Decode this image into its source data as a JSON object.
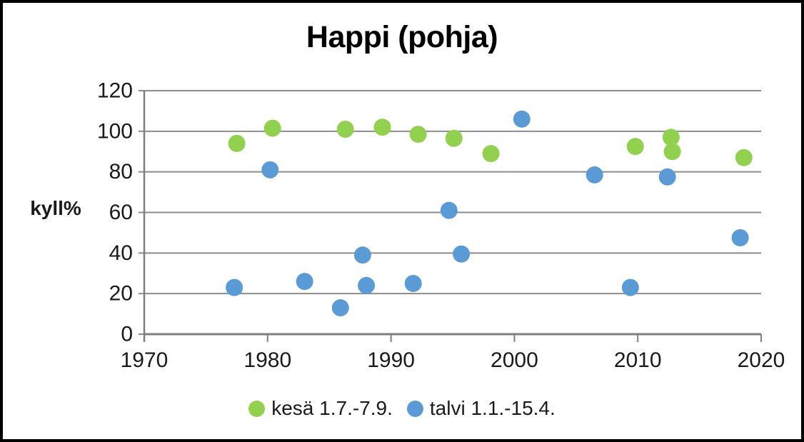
{
  "frame": {
    "border_color": "#000000",
    "background_color": "#ffffff"
  },
  "chart_data": {
    "type": "scatter",
    "title": "Happi (pohja)",
    "xlabel": "",
    "ylabel": "kyll%",
    "x_range": [
      1970,
      2020
    ],
    "y_range": [
      0,
      120
    ],
    "x_ticks": [
      1970,
      1980,
      1990,
      2000,
      2010,
      2020
    ],
    "y_ticks": [
      0,
      20,
      40,
      60,
      80,
      100,
      120
    ],
    "grid": "horizontal",
    "legend_position": "bottom",
    "marker_radius": 12,
    "colors": {
      "gridline": "#8c8c8c",
      "axis": "#7f7f7f",
      "tick_text": "#1a1a1a"
    },
    "series": [
      {
        "id": "kesa",
        "name": "kesä 1.7.-7.9.",
        "color": "#92d050",
        "points": [
          [
            1977.5,
            94
          ],
          [
            1980.4,
            101.5
          ],
          [
            1986.3,
            101
          ],
          [
            1989.3,
            102
          ],
          [
            1992.2,
            98.5
          ],
          [
            1995.1,
            96.5
          ],
          [
            1998.1,
            89
          ],
          [
            2009.8,
            92.5
          ],
          [
            2012.7,
            97
          ],
          [
            2012.8,
            90
          ],
          [
            2018.6,
            87
          ]
        ]
      },
      {
        "id": "talvi",
        "name": "talvi 1.1.-15.4.",
        "color": "#5b9bd5",
        "points": [
          [
            1977.3,
            23
          ],
          [
            1980.2,
            81
          ],
          [
            1983.0,
            26
          ],
          [
            1985.9,
            13
          ],
          [
            1987.7,
            39
          ],
          [
            1988.0,
            24
          ],
          [
            1991.8,
            25
          ],
          [
            1994.7,
            61
          ],
          [
            1995.7,
            39.5
          ],
          [
            2000.6,
            106
          ],
          [
            2006.5,
            78.5
          ],
          [
            2009.4,
            23
          ],
          [
            2012.4,
            77.5
          ],
          [
            2018.3,
            47.5
          ]
        ]
      }
    ]
  }
}
